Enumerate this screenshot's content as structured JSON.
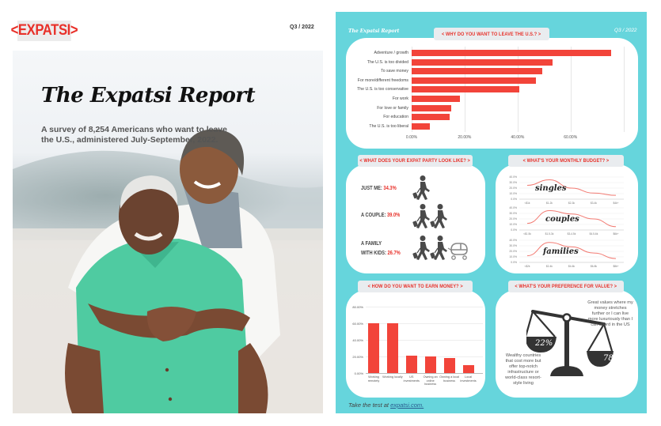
{
  "cover": {
    "logo": "<EXPATSI>",
    "quarter": "Q3 / 2022",
    "title": "The Expatsi Report",
    "subtitle": "A survey of 8,254 Americans who want to leave the U.S., administered July-September, 2022."
  },
  "infographic": {
    "brand": "The Expatsi Report",
    "quarter": "Q3 / 2022",
    "background_color": "#66d5dc",
    "accent_color": "#f2443a",
    "footer": {
      "prefix": "Take the test at ",
      "link": "expatsi.com."
    },
    "sections": {
      "why_leave": {
        "title": "< WHY DO YOU WANT TO LEAVE THE U.S.? >"
      },
      "party": {
        "title": "< WHAT DOES YOUR EXPAT PARTY LOOK LIKE? >",
        "items": [
          {
            "label": "JUST ME:",
            "pct": "34.3%",
            "icon": "single-traveler-icon"
          },
          {
            "label": "A COUPLE:",
            "pct": "39.0%",
            "icon": "couple-travelers-icon"
          },
          {
            "label_line1": "A FAMILY",
            "label": "WITH KIDS:",
            "pct": "26.7%",
            "icon": "family-travelers-stroller-icon"
          }
        ]
      },
      "budget": {
        "title": "< WHAT'S YOUR MONTHLY BUDGET? >",
        "panels": [
          {
            "word": "singles"
          },
          {
            "word": "couples"
          },
          {
            "word": "families"
          }
        ]
      },
      "earn": {
        "title": "< HOW DO YOU WANT TO EARN MONEY? >"
      },
      "value": {
        "title": "< WHAT'S YOUR PREFERENCE FOR VALUE? >",
        "left_pct": "22%",
        "right_pct": "78%",
        "left_text": "Wealthy countries that cost more but offer top-notch infrastructure or world-class resort-style living",
        "right_text": "Great values where my money stretches further or I can live more luxuriously than I can afford in the US",
        "icon": "balance-scale-icon"
      }
    }
  },
  "chart_data": [
    {
      "type": "bar",
      "orientation": "horizontal",
      "title": "< WHY DO YOU WANT TO LEAVE THE U.S.? >",
      "categories": [
        "Adventure / growth",
        "The U.S. is too divided",
        "To save money",
        "For more/different freedoms",
        "The U.S. is too conservative",
        "For work",
        "For love or family",
        "For education",
        "The U.S. is too liberal"
      ],
      "values": [
        75.4,
        53.1,
        49.4,
        46.9,
        40.6,
        18.3,
        14.9,
        14.4,
        7.0
      ],
      "xlabel": "",
      "ylabel": "",
      "xticks": [
        "0.00%",
        "20.00%",
        "40.00%",
        "60.00%"
      ],
      "xlim": [
        0,
        80
      ],
      "grid": true,
      "color": "#f2443a"
    },
    {
      "type": "line",
      "title": "singles",
      "categories": [
        "<$1k",
        "$1-2k",
        "$2-3k",
        "$3-4k",
        "$4k+"
      ],
      "values": [
        25,
        35,
        20,
        11,
        7
      ],
      "yticks": [
        "0.0%",
        "10.0%",
        "20.0%",
        "30.0%",
        "40.0%"
      ],
      "ylim": [
        0,
        40
      ],
      "color": "#f27a72"
    },
    {
      "type": "line",
      "title": "couples",
      "categories": [
        "<$1.5k",
        "$1.5-3k",
        "$3-4.5k",
        "$4.5-6k",
        "$6k+"
      ],
      "values": [
        12,
        35,
        29,
        20,
        6
      ],
      "yticks": [
        "0.0%",
        "10.0%",
        "20.0%",
        "30.0%",
        "40.0%"
      ],
      "ylim": [
        0,
        40
      ],
      "color": "#f27a72"
    },
    {
      "type": "line",
      "title": "families",
      "categories": [
        "<$2k",
        "$2-4k",
        "$4-6k",
        "$6-8k",
        "$8k+"
      ],
      "values": [
        12,
        36,
        28,
        17,
        7
      ],
      "yticks": [
        "0.0%",
        "10.0%",
        "20.0%",
        "30.0%",
        "40.0%"
      ],
      "ylim": [
        0,
        40
      ],
      "color": "#f27a72"
    },
    {
      "type": "bar",
      "orientation": "vertical",
      "title": "< HOW DO YOU WANT TO EARN MONEY? >",
      "categories": [
        "Working remotely",
        "Working locally",
        "US investments",
        "Owning an online business",
        "Owning a local business",
        "Local investments"
      ],
      "values": [
        60.3,
        60.3,
        21.3,
        20.3,
        18.4,
        9.5
      ],
      "yticks": [
        "0.00%",
        "20.00%",
        "40.00%",
        "60.00%",
        "80.00%"
      ],
      "ylim": [
        0,
        80
      ],
      "grid": true,
      "color": "#f2443a"
    },
    {
      "type": "pie",
      "title": "< WHAT'S YOUR PREFERENCE FOR VALUE? >",
      "categories": [
        "Wealthy countries that cost more but offer top-notch infrastructure or world-class resort-style living",
        "Great values where my money stretches further or I can live more luxuriously than I can afford in the US"
      ],
      "values": [
        22,
        78
      ]
    }
  ]
}
